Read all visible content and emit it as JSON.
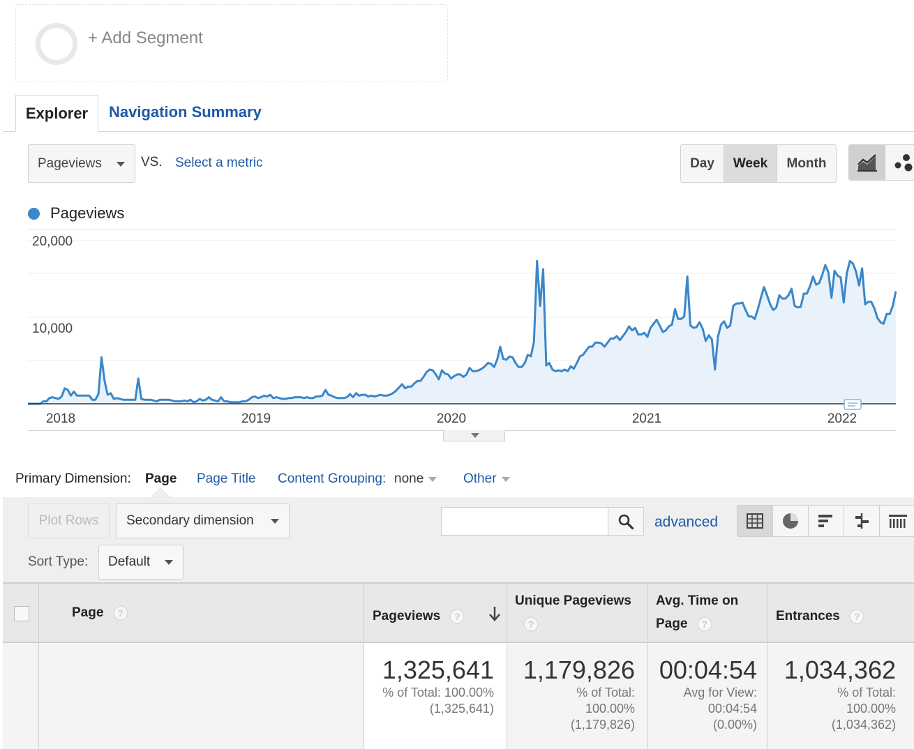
{
  "segment": {
    "add_label": "+ Add Segment"
  },
  "tabs": [
    {
      "label": "Explorer"
    },
    {
      "label": "Navigation Summary"
    }
  ],
  "metric": {
    "selected": "Pageviews",
    "vs_label": "VS.",
    "select_metric": "Select a metric"
  },
  "period": {
    "day": "Day",
    "week": "Week",
    "month": "Month",
    "active": "Week"
  },
  "chart_icons": [
    "line-chart-icon",
    "motion-chart-icon"
  ],
  "legend": {
    "label": "Pageviews",
    "color": "#3a87c9"
  },
  "chart_data": {
    "type": "area",
    "series": [
      {
        "name": "Pageviews",
        "values": [
          0,
          0,
          0,
          0,
          0,
          300,
          300,
          700,
          800,
          700,
          600,
          900,
          1900,
          1700,
          1000,
          1500,
          1000,
          1000,
          1000,
          1000,
          1000,
          500,
          500,
          1200,
          5700,
          2800,
          1100,
          1300,
          600,
          700,
          600,
          500,
          500,
          500,
          500,
          500,
          3100,
          600,
          500,
          500,
          500,
          400,
          300,
          500,
          500,
          500,
          500,
          400,
          300,
          300,
          300,
          400,
          300,
          500,
          200,
          300,
          600,
          400,
          500,
          800,
          500,
          400,
          300,
          800,
          300,
          300,
          200,
          200,
          200,
          200,
          300,
          300,
          500,
          800,
          900,
          700,
          800,
          1000,
          900,
          1100,
          700,
          800,
          700,
          600,
          600,
          700,
          700,
          800,
          800,
          800,
          700,
          800,
          700,
          700,
          900,
          900,
          1000,
          1700,
          1100,
          1000,
          800,
          700,
          700,
          700,
          800,
          1200,
          800,
          1300,
          1000,
          1100,
          1100,
          900,
          1000,
          900,
          1000,
          1100,
          1000,
          1000,
          1100,
          1300,
          1600,
          2000,
          2400,
          1900,
          2100,
          2100,
          2500,
          2800,
          2800,
          3300,
          3900,
          4200,
          4100,
          3600,
          3000,
          4100,
          3700,
          3600,
          3100,
          3400,
          3600,
          3600,
          3300,
          3600,
          4400,
          4000,
          4000,
          4100,
          4300,
          4600,
          5000,
          4900,
          4500,
          5400,
          7000,
          5500,
          5400,
          5800,
          5700,
          5000,
          4500,
          4500,
          5000,
          6000,
          5800,
          7600,
          17500,
          12000,
          16500,
          4700,
          5000,
          4200,
          4000,
          4100,
          4000,
          4200,
          4000,
          4600,
          4300,
          5000,
          5800,
          6000,
          6500,
          7000,
          7000,
          7500,
          7500,
          7400,
          7000,
          7500,
          8000,
          8000,
          8300,
          7800,
          8300,
          8800,
          9500,
          9000,
          9300,
          8500,
          8500,
          8700,
          8200,
          9300,
          9800,
          10300,
          9600,
          8800,
          9000,
          9500,
          9700,
          11600,
          10400,
          10400,
          10700,
          15600,
          9600,
          9300,
          9400,
          10000,
          9200,
          7700,
          8400,
          7900,
          4200,
          8200,
          9700,
          10100,
          9300,
          9600,
          12000,
          12300,
          12300,
          12400,
          11500,
          10700,
          10700,
          10400,
          11600,
          13000,
          14300,
          13300,
          12200,
          11500,
          11800,
          13300,
          12900,
          12900,
          13300,
          14100,
          12000,
          11800,
          11900,
          13500,
          13500,
          14400,
          15600,
          14600,
          14800,
          15800,
          17000,
          16100,
          13000,
          16300,
          15700,
          15500,
          12400,
          16000,
          17500,
          17200,
          16200,
          14500,
          16600,
          12200,
          12500,
          12500,
          11700,
          10500,
          10000,
          9800,
          11000,
          11000,
          12000,
          13800
        ]
      }
    ],
    "x_ticks": [
      "2018",
      "2019",
      "2020",
      "2021",
      "2022"
    ],
    "y_ticks": [
      "20,000",
      "10,000"
    ],
    "ylim": [
      0,
      20000
    ],
    "grid": true,
    "fill_color": "#e9f1fa",
    "line_color": "#3a87c9"
  },
  "primary_dimension": {
    "label": "Primary Dimension:",
    "active": "Page",
    "page_title": "Page Title",
    "content_grouping": "Content Grouping:",
    "content_grouping_value": "none",
    "other": "Other"
  },
  "controls": {
    "plot_rows": "Plot Rows",
    "secondary_dimension": "Secondary dimension",
    "search_value": "",
    "advanced": "advanced",
    "sort_type_label": "Sort Type:",
    "sort_type_value": "Default"
  },
  "view_icons": [
    "data-table-icon",
    "pie-chart-icon",
    "performance-bars-icon",
    "comparison-icon",
    "pivot-icon"
  ],
  "table": {
    "columns": {
      "page": "Page",
      "pageviews": "Pageviews",
      "unique_pageviews": "Unique Pageviews",
      "avg_time_line1": "Avg. Time on",
      "avg_time_line2": "Page",
      "entrances": "Entrances"
    },
    "help_glyph": "?",
    "totals": {
      "pageviews": {
        "value": "1,325,641",
        "sub1": "% of Total: 100.00%",
        "sub2": "(1,325,641)"
      },
      "unique_pageviews": {
        "value": "1,179,826",
        "sub1": "% of Total:",
        "sub2": "100.00%",
        "sub3": "(1,179,826)"
      },
      "avg_time": {
        "value": "00:04:54",
        "sub1": "Avg for View:",
        "sub2": "00:04:54",
        "sub3": "(0.00%)"
      },
      "entrances": {
        "value": "1,034,362",
        "sub1": "% of Total:",
        "sub2": "100.00%",
        "sub3": "(1,034,362)"
      }
    }
  }
}
